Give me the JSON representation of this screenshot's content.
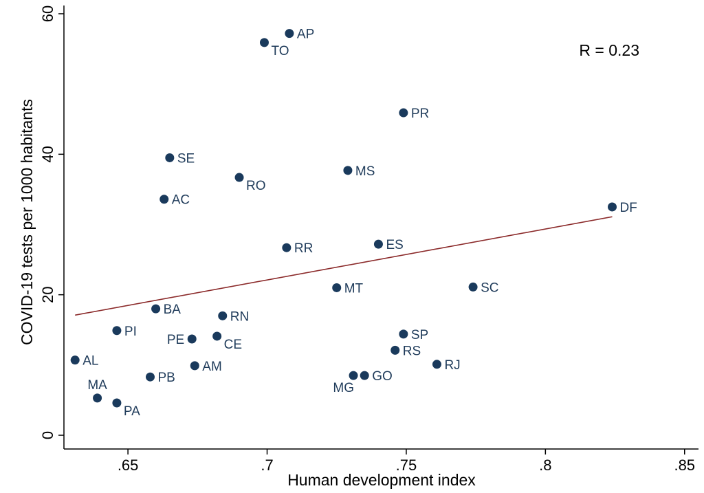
{
  "chart_data": {
    "type": "scatter",
    "xlabel": "Human development index",
    "ylabel": "COVID-19 tests per 1000 habitants",
    "xlim": [
      0.627,
      0.855
    ],
    "ylim": [
      0,
      60
    ],
    "x_ticks": [
      {
        "value": 0.65,
        "label": ".65"
      },
      {
        "value": 0.7,
        "label": ".7"
      },
      {
        "value": 0.75,
        "label": ".75"
      },
      {
        "value": 0.8,
        "label": ".8"
      },
      {
        "value": 0.85,
        "label": ".85"
      }
    ],
    "y_ticks": [
      {
        "value": 0,
        "label": "0"
      },
      {
        "value": 20,
        "label": "20"
      },
      {
        "value": 40,
        "label": "40"
      },
      {
        "value": 60,
        "label": "60"
      }
    ],
    "grid": false,
    "annotation": "R = 0.23",
    "marker_color": "#1a3a5c",
    "label_color": "#1f3b5a",
    "fit_line_color": "#8b2a2a",
    "fit_line": {
      "x": [
        0.631,
        0.824
      ],
      "y": [
        17.1,
        31.1
      ]
    },
    "points": [
      {
        "label": "AP",
        "x": 0.708,
        "y": 57.2,
        "pos": "right"
      },
      {
        "label": "TO",
        "x": 0.699,
        "y": 55.9,
        "pos": "below-right"
      },
      {
        "label": "PR",
        "x": 0.749,
        "y": 45.9,
        "pos": "right"
      },
      {
        "label": "SE",
        "x": 0.665,
        "y": 39.5,
        "pos": "right"
      },
      {
        "label": "MS",
        "x": 0.729,
        "y": 37.7,
        "pos": "right"
      },
      {
        "label": "RO",
        "x": 0.69,
        "y": 36.7,
        "pos": "below-right"
      },
      {
        "label": "AC",
        "x": 0.663,
        "y": 33.6,
        "pos": "right"
      },
      {
        "label": "DF",
        "x": 0.824,
        "y": 32.5,
        "pos": "right"
      },
      {
        "label": "ES",
        "x": 0.74,
        "y": 27.2,
        "pos": "right"
      },
      {
        "label": "RR",
        "x": 0.707,
        "y": 26.7,
        "pos": "right"
      },
      {
        "label": "SC",
        "x": 0.774,
        "y": 21.1,
        "pos": "right"
      },
      {
        "label": "MT",
        "x": 0.725,
        "y": 21.0,
        "pos": "right"
      },
      {
        "label": "BA",
        "x": 0.66,
        "y": 18.0,
        "pos": "right"
      },
      {
        "label": "RN",
        "x": 0.684,
        "y": 17.0,
        "pos": "right"
      },
      {
        "label": "PI",
        "x": 0.646,
        "y": 14.9,
        "pos": "right"
      },
      {
        "label": "SP",
        "x": 0.749,
        "y": 14.4,
        "pos": "right"
      },
      {
        "label": "CE",
        "x": 0.682,
        "y": 14.1,
        "pos": "below-right"
      },
      {
        "label": "PE",
        "x": 0.673,
        "y": 13.7,
        "pos": "left"
      },
      {
        "label": "RS",
        "x": 0.746,
        "y": 12.1,
        "pos": "right"
      },
      {
        "label": "AL",
        "x": 0.631,
        "y": 10.7,
        "pos": "right"
      },
      {
        "label": "RJ",
        "x": 0.761,
        "y": 10.1,
        "pos": "right"
      },
      {
        "label": "AM",
        "x": 0.674,
        "y": 9.9,
        "pos": "right"
      },
      {
        "label": "GO",
        "x": 0.735,
        "y": 8.5,
        "pos": "right"
      },
      {
        "label": "MG",
        "x": 0.731,
        "y": 8.5,
        "pos": "below-left"
      },
      {
        "label": "PB",
        "x": 0.658,
        "y": 8.3,
        "pos": "right"
      },
      {
        "label": "MA",
        "x": 0.639,
        "y": 5.3,
        "pos": "above"
      },
      {
        "label": "PA",
        "x": 0.646,
        "y": 4.6,
        "pos": "below-right"
      }
    ]
  }
}
